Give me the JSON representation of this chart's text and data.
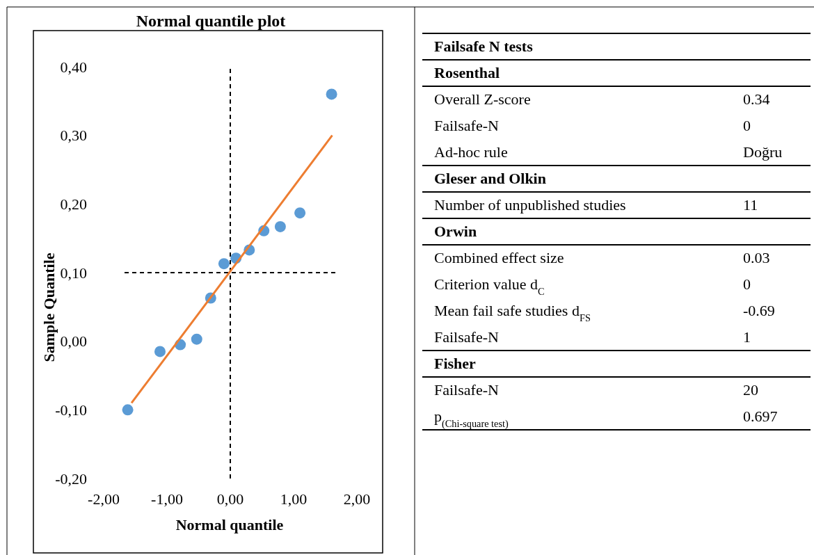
{
  "chart_data": [
    {
      "type": "scatter",
      "title": "Normal quantile plot",
      "xlabel": "Normal quantile",
      "ylabel": "Sample Quantile",
      "marker": "circle",
      "grid": false,
      "xlim": [
        -2,
        2
      ],
      "xticks": [
        {
          "value": -2,
          "label": "-2,00"
        },
        {
          "value": -1,
          "label": "-1,00"
        },
        {
          "value": 0,
          "label": "0,00"
        },
        {
          "value": 1,
          "label": "1,00"
        },
        {
          "value": 2,
          "label": "2,00"
        }
      ],
      "ylim": [
        -0.2,
        0.4
      ],
      "yticks": [
        {
          "value": -0.2,
          "label": "-0,20"
        },
        {
          "value": -0.1,
          "label": "-0,10"
        },
        {
          "value": 0,
          "label": "0,00"
        },
        {
          "value": 0.1,
          "label": "0,10"
        },
        {
          "value": 0.2,
          "label": "0,20"
        },
        {
          "value": 0.3,
          "label": "0,30"
        },
        {
          "value": 0.4,
          "label": "0,40"
        }
      ],
      "ref_lines": [
        {
          "axis": "x",
          "value": 0,
          "color": "#000000",
          "line_style": "dashed"
        },
        {
          "axis": "y",
          "value": 0.1,
          "color": "#000000",
          "line_style": "dashed"
        }
      ],
      "series": [
        {
          "type": "scatter",
          "color": "#5b9bd5",
          "x": [
            -1.62,
            -1.11,
            -0.79,
            -0.53,
            -0.31,
            -0.1,
            0.09,
            0.3,
            0.53,
            0.79,
            1.1,
            1.6
          ],
          "values": [
            -0.1,
            -0.015,
            -0.005,
            0.003,
            0.063,
            0.113,
            0.121,
            0.133,
            0.161,
            0.167,
            0.187,
            0.36
          ]
        },
        {
          "type": "line",
          "color": "#ed7d31",
          "marker": "none",
          "x": [
            -1.56,
            1.61
          ],
          "values": [
            -0.09,
            0.3
          ]
        }
      ]
    },
    {
      "type": "other",
      "title": "Failsafe N tests",
      "categories": [
        "Rosenthal",
        "Overall Z-score",
        "Failsafe-N",
        "Ad-hoc rule",
        "Gleser and Olkin",
        "Number of unpublished studies",
        "Orwin",
        "Combined effect size",
        "Criterion value d$_{C}$",
        "Mean fail safe studies d$_{FS}$",
        "Failsafe-N",
        "Fisher",
        "Failsafe-N",
        "p$_{(Chi-square test)}$"
      ],
      "value_labels": [
        null,
        "0.34",
        "0",
        "Doğru",
        null,
        "11",
        null,
        "0.03",
        "0",
        "-0.69",
        "1",
        null,
        "20",
        "0.697"
      ]
    }
  ]
}
